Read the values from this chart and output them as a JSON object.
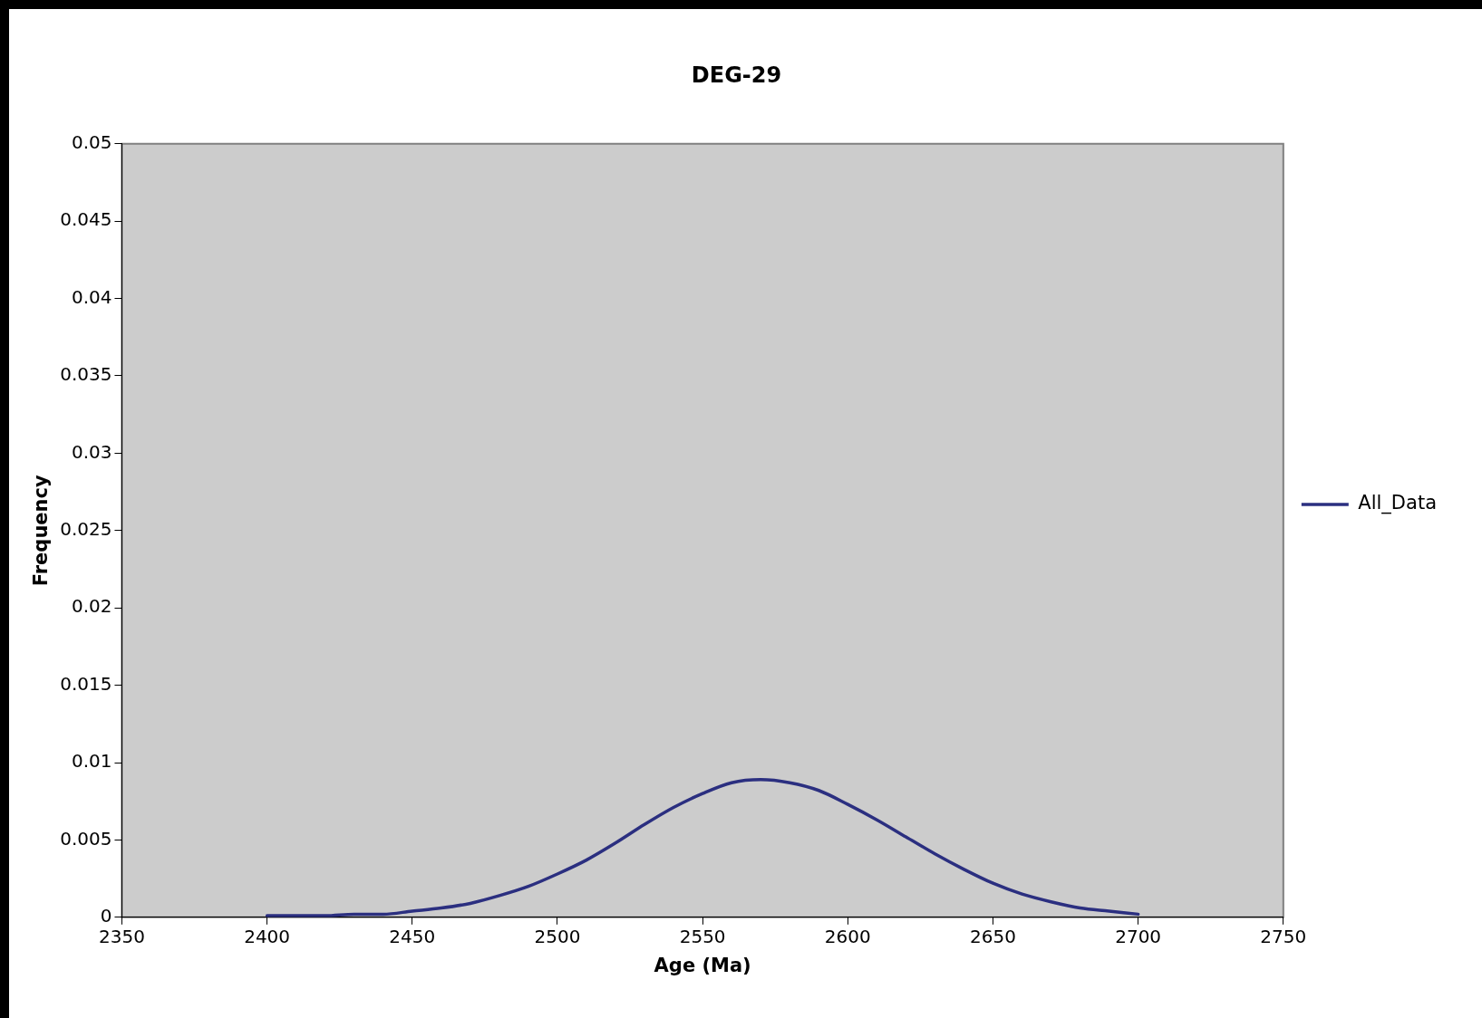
{
  "chart_data": {
    "type": "line",
    "title": "DEG-29",
    "xlabel": "Age (Ma)",
    "ylabel": "Frequency",
    "xlim": [
      2350,
      2750
    ],
    "xticks": [
      2350,
      2400,
      2450,
      2500,
      2550,
      2600,
      2650,
      2700,
      2750
    ],
    "ylim": [
      0,
      0.05
    ],
    "yticks": [
      0,
      0.005,
      0.01,
      0.015,
      0.02,
      0.025,
      0.03,
      0.035,
      0.04,
      0.045,
      0.05
    ],
    "legend": "right",
    "marker": "none",
    "line_style": "solid",
    "series": [
      {
        "name": "All_Data",
        "color": "#2b2f80",
        "x": [
          2400,
          2410,
          2420,
          2430,
          2440,
          2450,
          2460,
          2470,
          2480,
          2490,
          2500,
          2510,
          2520,
          2530,
          2540,
          2550,
          2560,
          2570,
          2580,
          2590,
          2600,
          2610,
          2620,
          2630,
          2640,
          2650,
          2660,
          2670,
          2680,
          2690,
          2700
        ],
        "values": [
          0.0001,
          0.0001,
          0.0001,
          0.0002,
          0.0002,
          0.0004,
          0.0006,
          0.0009,
          0.0014,
          0.002,
          0.0028,
          0.0037,
          0.0048,
          0.006,
          0.0071,
          0.008,
          0.0087,
          0.0089,
          0.0087,
          0.0082,
          0.0073,
          0.0063,
          0.0052,
          0.0041,
          0.0031,
          0.0022,
          0.0015,
          0.001,
          0.0006,
          0.0004,
          0.0002
        ]
      }
    ]
  }
}
